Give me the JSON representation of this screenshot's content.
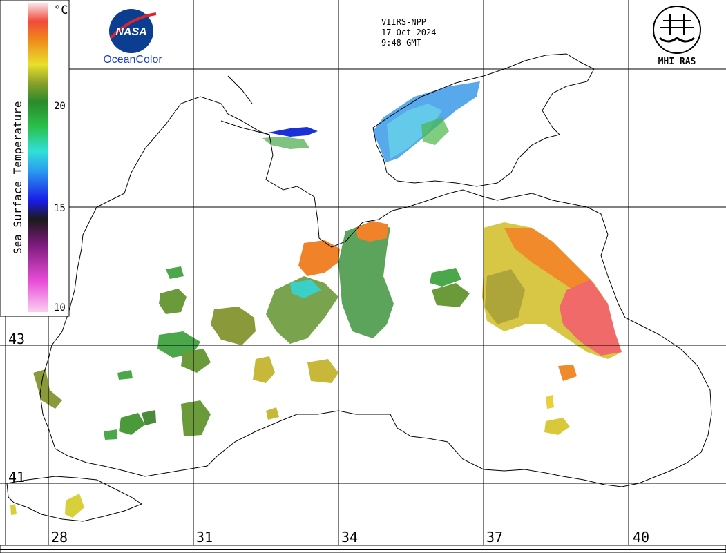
{
  "header": {
    "sensor": "VIIRS-NPP",
    "date": "17 Oct 2024",
    "time": "9:48 GMT"
  },
  "logos": {
    "nasa_text": "NASA",
    "oceancolor": "OceanColor",
    "mhi": "MHI RAS"
  },
  "colorbar": {
    "unit": "°C",
    "title": "Sea Surface Temperature",
    "ticks": [
      "20",
      "15",
      "10"
    ],
    "min": 10,
    "max": 25
  },
  "axes": {
    "lat_labels": [
      "43",
      "41"
    ],
    "lon_labels": [
      "28",
      "31",
      "34",
      "37",
      "40"
    ]
  },
  "colors": {
    "coast": "#000000",
    "grid": "#000000",
    "warm": "#f07a2a",
    "hot": "#f26b6b",
    "yellow": "#c8c43a",
    "green": "#4aa83a",
    "cyan": "#3ad6e0",
    "blue": "#1a40e0"
  }
}
